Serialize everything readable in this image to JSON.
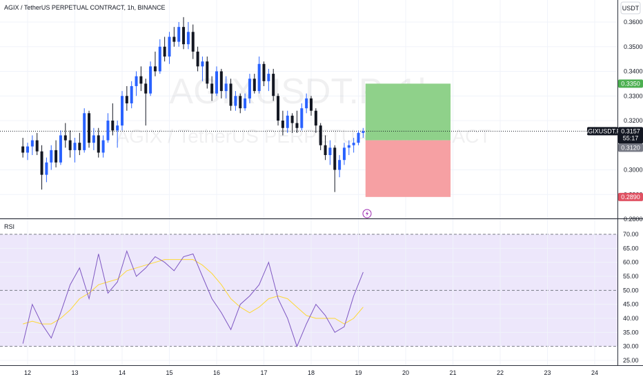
{
  "header": {
    "title": "AGIX / TetherUS PERPETUAL CONTRACT, 1h, BINANCE",
    "currency_button": "USDT"
  },
  "watermark": {
    "symbol": "AGIXUSDT.P, 1h",
    "description": "AGIX / TetherUS PERPETUAL CONTRACT"
  },
  "colors": {
    "up": "#2962ff",
    "down": "#131722",
    "profit_zone": "#8fd18a",
    "loss_zone": "#f6a0a3",
    "rsi_line": "#7e57c2",
    "rsi_ma": "#fdd835",
    "rsi_band": "#ede7fb",
    "target_label": "#4caf50",
    "stop_label": "#e05263",
    "entry_label": "#787b86",
    "symbol_label": "#131722",
    "time_label": "#131722"
  },
  "price_scale": {
    "ticks": [
      "0.3600",
      "0.3500",
      "0.3400",
      "0.3300",
      "0.3200",
      "0.3000",
      "0.2900",
      "0.2800"
    ],
    "target_label": "0.3350",
    "entry_label": "0.3120",
    "stop_label": "0.2890",
    "current_symbol": "AGIXUSDT.P",
    "current_price": "0.3157",
    "countdown": "55:17"
  },
  "rsi_panel": {
    "label": "RSI",
    "ticks": [
      "70.00",
      "65.00",
      "60.00",
      "55.00",
      "50.00",
      "45.00",
      "40.00",
      "35.00",
      "30.00",
      "25.00"
    ]
  },
  "time_axis": {
    "ticks": [
      "12",
      "13",
      "14",
      "15",
      "16",
      "17",
      "18",
      "19",
      "20",
      "21",
      "22",
      "23",
      "24"
    ]
  },
  "alert_icon": "lightning-icon",
  "chart_data": {
    "type": "candlestick",
    "x_unit": "day of month (1h candles)",
    "ylim": [
      0.28,
      0.365
    ],
    "candles": [
      {
        "t": 11.9,
        "o": 0.3095,
        "h": 0.313,
        "l": 0.305,
        "c": 0.307
      },
      {
        "t": 12.0,
        "o": 0.307,
        "h": 0.311,
        "l": 0.304,
        "c": 0.3095
      },
      {
        "t": 12.1,
        "o": 0.3095,
        "h": 0.314,
        "l": 0.306,
        "c": 0.312
      },
      {
        "t": 12.2,
        "o": 0.312,
        "h": 0.315,
        "l": 0.306,
        "c": 0.3075
      },
      {
        "t": 12.3,
        "o": 0.3075,
        "h": 0.31,
        "l": 0.292,
        "c": 0.298
      },
      {
        "t": 12.4,
        "o": 0.298,
        "h": 0.305,
        "l": 0.295,
        "c": 0.303
      },
      {
        "t": 12.5,
        "o": 0.303,
        "h": 0.31,
        "l": 0.3,
        "c": 0.308
      },
      {
        "t": 12.6,
        "o": 0.308,
        "h": 0.312,
        "l": 0.301,
        "c": 0.303
      },
      {
        "t": 12.7,
        "o": 0.303,
        "h": 0.316,
        "l": 0.302,
        "c": 0.314
      },
      {
        "t": 12.8,
        "o": 0.314,
        "h": 0.319,
        "l": 0.309,
        "c": 0.312
      },
      {
        "t": 12.9,
        "o": 0.312,
        "h": 0.316,
        "l": 0.305,
        "c": 0.308
      },
      {
        "t": 13.0,
        "o": 0.308,
        "h": 0.313,
        "l": 0.303,
        "c": 0.311
      },
      {
        "t": 13.1,
        "o": 0.311,
        "h": 0.315,
        "l": 0.306,
        "c": 0.308
      },
      {
        "t": 13.2,
        "o": 0.308,
        "h": 0.325,
        "l": 0.307,
        "c": 0.323
      },
      {
        "t": 13.3,
        "o": 0.323,
        "h": 0.324,
        "l": 0.309,
        "c": 0.311
      },
      {
        "t": 13.4,
        "o": 0.311,
        "h": 0.317,
        "l": 0.308,
        "c": 0.314
      },
      {
        "t": 13.5,
        "o": 0.314,
        "h": 0.317,
        "l": 0.305,
        "c": 0.307
      },
      {
        "t": 13.6,
        "o": 0.307,
        "h": 0.314,
        "l": 0.305,
        "c": 0.312
      },
      {
        "t": 13.7,
        "o": 0.312,
        "h": 0.323,
        "l": 0.311,
        "c": 0.32
      },
      {
        "t": 13.8,
        "o": 0.32,
        "h": 0.327,
        "l": 0.314,
        "c": 0.316
      },
      {
        "t": 13.9,
        "o": 0.316,
        "h": 0.32,
        "l": 0.309,
        "c": 0.318
      },
      {
        "t": 14.0,
        "o": 0.318,
        "h": 0.332,
        "l": 0.316,
        "c": 0.33
      },
      {
        "t": 14.1,
        "o": 0.33,
        "h": 0.334,
        "l": 0.324,
        "c": 0.327
      },
      {
        "t": 14.2,
        "o": 0.327,
        "h": 0.336,
        "l": 0.325,
        "c": 0.334
      },
      {
        "t": 14.3,
        "o": 0.334,
        "h": 0.34,
        "l": 0.33,
        "c": 0.338
      },
      {
        "t": 14.4,
        "o": 0.338,
        "h": 0.342,
        "l": 0.332,
        "c": 0.335
      },
      {
        "t": 14.5,
        "o": 0.335,
        "h": 0.337,
        "l": 0.318,
        "c": 0.331
      },
      {
        "t": 14.6,
        "o": 0.331,
        "h": 0.344,
        "l": 0.33,
        "c": 0.342
      },
      {
        "t": 14.7,
        "o": 0.342,
        "h": 0.348,
        "l": 0.338,
        "c": 0.34
      },
      {
        "t": 14.8,
        "o": 0.34,
        "h": 0.353,
        "l": 0.339,
        "c": 0.35
      },
      {
        "t": 14.9,
        "o": 0.35,
        "h": 0.354,
        "l": 0.344,
        "c": 0.346
      },
      {
        "t": 15.0,
        "o": 0.346,
        "h": 0.356,
        "l": 0.343,
        "c": 0.354
      },
      {
        "t": 15.1,
        "o": 0.354,
        "h": 0.358,
        "l": 0.35,
        "c": 0.352
      },
      {
        "t": 15.2,
        "o": 0.352,
        "h": 0.36,
        "l": 0.35,
        "c": 0.358
      },
      {
        "t": 15.3,
        "o": 0.358,
        "h": 0.362,
        "l": 0.349,
        "c": 0.351
      },
      {
        "t": 15.4,
        "o": 0.351,
        "h": 0.36,
        "l": 0.349,
        "c": 0.356
      },
      {
        "t": 15.5,
        "o": 0.356,
        "h": 0.359,
        "l": 0.345,
        "c": 0.348
      },
      {
        "t": 15.6,
        "o": 0.348,
        "h": 0.35,
        "l": 0.34,
        "c": 0.342
      },
      {
        "t": 15.7,
        "o": 0.342,
        "h": 0.346,
        "l": 0.336,
        "c": 0.344
      },
      {
        "t": 15.8,
        "o": 0.344,
        "h": 0.346,
        "l": 0.333,
        "c": 0.335
      },
      {
        "t": 15.9,
        "o": 0.335,
        "h": 0.338,
        "l": 0.328,
        "c": 0.331
      },
      {
        "t": 16.0,
        "o": 0.331,
        "h": 0.342,
        "l": 0.33,
        "c": 0.34
      },
      {
        "t": 16.1,
        "o": 0.34,
        "h": 0.341,
        "l": 0.329,
        "c": 0.332
      },
      {
        "t": 16.2,
        "o": 0.332,
        "h": 0.338,
        "l": 0.329,
        "c": 0.335
      },
      {
        "t": 16.3,
        "o": 0.335,
        "h": 0.337,
        "l": 0.324,
        "c": 0.326
      },
      {
        "t": 16.4,
        "o": 0.326,
        "h": 0.332,
        "l": 0.324,
        "c": 0.33
      },
      {
        "t": 16.5,
        "o": 0.33,
        "h": 0.331,
        "l": 0.323,
        "c": 0.325
      },
      {
        "t": 16.6,
        "o": 0.325,
        "h": 0.331,
        "l": 0.324,
        "c": 0.329
      },
      {
        "t": 16.7,
        "o": 0.329,
        "h": 0.339,
        "l": 0.327,
        "c": 0.337
      },
      {
        "t": 16.8,
        "o": 0.337,
        "h": 0.339,
        "l": 0.331,
        "c": 0.332
      },
      {
        "t": 16.9,
        "o": 0.332,
        "h": 0.346,
        "l": 0.331,
        "c": 0.343
      },
      {
        "t": 17.0,
        "o": 0.343,
        "h": 0.344,
        "l": 0.334,
        "c": 0.336
      },
      {
        "t": 17.1,
        "o": 0.336,
        "h": 0.341,
        "l": 0.332,
        "c": 0.339
      },
      {
        "t": 17.2,
        "o": 0.339,
        "h": 0.341,
        "l": 0.328,
        "c": 0.33
      },
      {
        "t": 17.3,
        "o": 0.33,
        "h": 0.331,
        "l": 0.318,
        "c": 0.32
      },
      {
        "t": 17.4,
        "o": 0.32,
        "h": 0.324,
        "l": 0.314,
        "c": 0.317
      },
      {
        "t": 17.5,
        "o": 0.317,
        "h": 0.324,
        "l": 0.315,
        "c": 0.322
      },
      {
        "t": 17.6,
        "o": 0.322,
        "h": 0.323,
        "l": 0.315,
        "c": 0.319
      },
      {
        "t": 17.7,
        "o": 0.319,
        "h": 0.324,
        "l": 0.315,
        "c": 0.317
      },
      {
        "t": 17.8,
        "o": 0.317,
        "h": 0.327,
        "l": 0.316,
        "c": 0.325
      },
      {
        "t": 17.9,
        "o": 0.325,
        "h": 0.331,
        "l": 0.323,
        "c": 0.329
      },
      {
        "t": 18.0,
        "o": 0.329,
        "h": 0.33,
        "l": 0.322,
        "c": 0.324
      },
      {
        "t": 18.1,
        "o": 0.324,
        "h": 0.325,
        "l": 0.315,
        "c": 0.318
      },
      {
        "t": 18.2,
        "o": 0.318,
        "h": 0.319,
        "l": 0.308,
        "c": 0.31
      },
      {
        "t": 18.3,
        "o": 0.31,
        "h": 0.314,
        "l": 0.304,
        "c": 0.306
      },
      {
        "t": 18.4,
        "o": 0.306,
        "h": 0.312,
        "l": 0.302,
        "c": 0.309
      },
      {
        "t": 18.5,
        "o": 0.309,
        "h": 0.31,
        "l": 0.291,
        "c": 0.3
      },
      {
        "t": 18.6,
        "o": 0.3,
        "h": 0.306,
        "l": 0.297,
        "c": 0.304
      },
      {
        "t": 18.7,
        "o": 0.304,
        "h": 0.311,
        "l": 0.302,
        "c": 0.309
      },
      {
        "t": 18.8,
        "o": 0.309,
        "h": 0.312,
        "l": 0.306,
        "c": 0.31
      },
      {
        "t": 18.9,
        "o": 0.31,
        "h": 0.313,
        "l": 0.307,
        "c": 0.311
      },
      {
        "t": 19.0,
        "o": 0.311,
        "h": 0.316,
        "l": 0.31,
        "c": 0.315
      },
      {
        "t": 19.1,
        "o": 0.315,
        "h": 0.317,
        "l": 0.313,
        "c": 0.3157
      }
    ],
    "position": {
      "side": "long",
      "entry": 0.312,
      "target": 0.335,
      "stop": 0.289,
      "start_t": 19.15,
      "end_t": 20.95
    },
    "rsi": {
      "ylim": [
        23,
        73
      ],
      "upper_band": 70,
      "middle": 50,
      "lower_band": 30,
      "t": [
        11.9,
        12.1,
        12.3,
        12.5,
        12.7,
        12.9,
        13.1,
        13.3,
        13.5,
        13.7,
        13.9,
        14.1,
        14.3,
        14.5,
        14.7,
        14.9,
        15.1,
        15.3,
        15.5,
        15.7,
        15.9,
        16.1,
        16.3,
        16.5,
        16.7,
        16.9,
        17.1,
        17.3,
        17.5,
        17.7,
        17.9,
        18.1,
        18.3,
        18.5,
        18.7,
        18.9,
        19.1
      ],
      "values": [
        31,
        45,
        38,
        33,
        42,
        52,
        58,
        47,
        63,
        49,
        53,
        64,
        55,
        58,
        62,
        60,
        57,
        62,
        63,
        55,
        47,
        42,
        36,
        45,
        48,
        52,
        60,
        47,
        40,
        30,
        38,
        45,
        41,
        35,
        37,
        48,
        56.5
      ],
      "ma": [
        38,
        39,
        38,
        38,
        40,
        43,
        47,
        49,
        52,
        53,
        54,
        57,
        58,
        59,
        60,
        61,
        61,
        61,
        61,
        59,
        56,
        52,
        47,
        44,
        42,
        44,
        47,
        48,
        47,
        44,
        41,
        40,
        40,
        40,
        38,
        40,
        44
      ]
    }
  }
}
